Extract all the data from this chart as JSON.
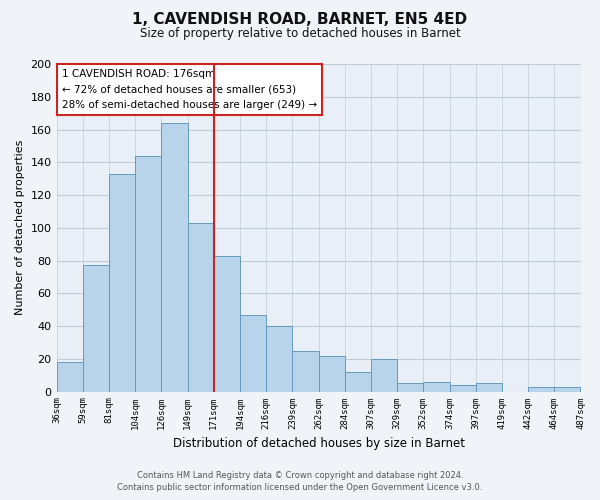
{
  "title": "1, CAVENDISH ROAD, BARNET, EN5 4ED",
  "subtitle": "Size of property relative to detached houses in Barnet",
  "xlabel": "Distribution of detached houses by size in Barnet",
  "ylabel": "Number of detached properties",
  "bar_labels": [
    "36sqm",
    "59sqm",
    "81sqm",
    "104sqm",
    "126sqm",
    "149sqm",
    "171sqm",
    "194sqm",
    "216sqm",
    "239sqm",
    "262sqm",
    "284sqm",
    "307sqm",
    "329sqm",
    "352sqm",
    "374sqm",
    "397sqm",
    "419sqm",
    "442sqm",
    "464sqm",
    "487sqm"
  ],
  "bar_values": [
    18,
    77,
    133,
    144,
    164,
    103,
    83,
    47,
    40,
    25,
    22,
    12,
    20,
    5,
    6,
    4,
    5,
    0,
    3,
    3
  ],
  "bar_color": "#b8d4ea",
  "bar_edge_color": "#6699bb",
  "vline_label_index": 6,
  "vline_color": "#cc2222",
  "ylim": [
    0,
    200
  ],
  "yticks": [
    0,
    20,
    40,
    60,
    80,
    100,
    120,
    140,
    160,
    180,
    200
  ],
  "annotation_line1": "1 CAVENDISH ROAD: 176sqm",
  "annotation_line2": "← 72% of detached houses are smaller (653)",
  "annotation_line3": "28% of semi-detached houses are larger (249) →",
  "annotation_box_edgecolor": "#cc2222",
  "footer_line1": "Contains HM Land Registry data © Crown copyright and database right 2024.",
  "footer_line2": "Contains public sector information licensed under the Open Government Licence v3.0.",
  "bg_color": "#e8eff6",
  "grid_color": "#c0ccd8",
  "fig_bg_color": "#f0f4f8"
}
